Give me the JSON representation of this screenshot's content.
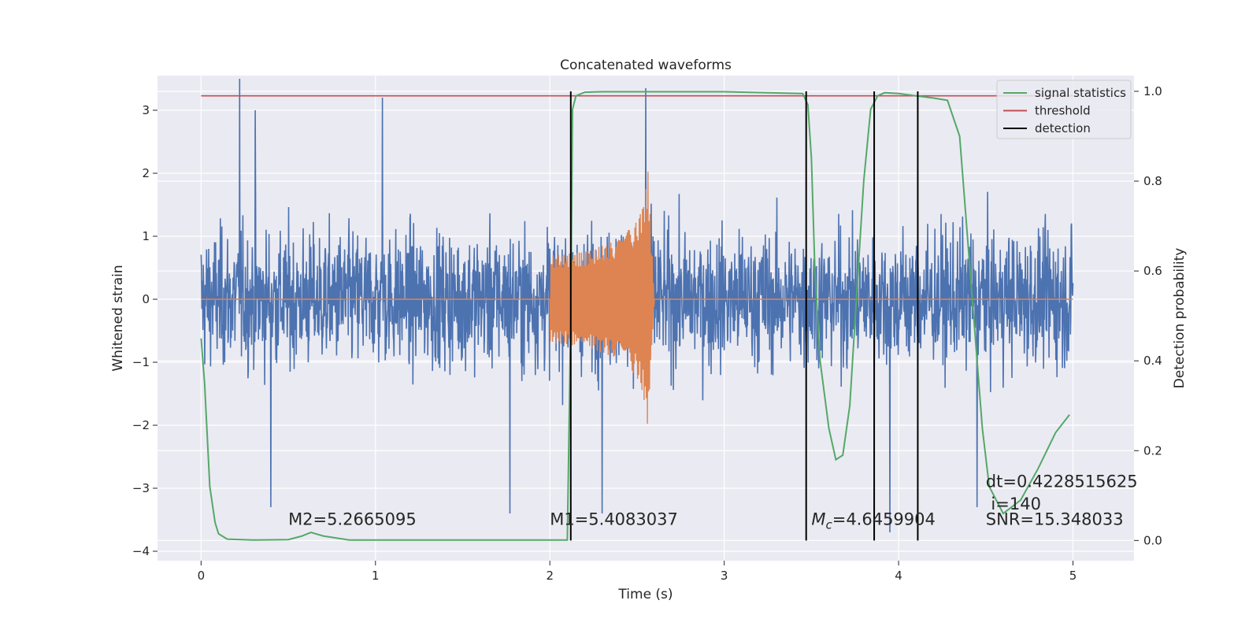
{
  "chart_data": {
    "type": "line",
    "title": "Concatenated waveforms",
    "xlabel": "Time (s)",
    "ylabel": "Whitened strain",
    "ylabel_right": "Detection probability",
    "xlim": [
      -0.25,
      5.35
    ],
    "ylim": [
      -4.15,
      3.55
    ],
    "ylim_right": [
      -0.045,
      1.035
    ],
    "x_ticks": [
      0,
      1,
      2,
      3,
      4,
      5
    ],
    "y_ticks": [
      -4,
      -3,
      -2,
      -1,
      0,
      1,
      2,
      3
    ],
    "y_ticks_right": [
      0.0,
      0.2,
      0.4,
      0.6,
      0.8,
      1.0
    ],
    "grid": true,
    "legend_position": "top-right",
    "colors": {
      "strain": "#4c72b0",
      "template": "#dd8452",
      "signal_statistics": "#55a868",
      "threshold": "#c44e52",
      "detection": "#000000",
      "background": "#eaeaf2",
      "grid": "#ffffff"
    },
    "series": [
      {
        "key": "strain",
        "kind": "noise",
        "x_range": [
          0,
          5
        ],
        "peak_points": [
          [
            0.22,
            3.5
          ],
          [
            0.31,
            3.0
          ],
          [
            1.04,
            3.2
          ],
          [
            2.55,
            3.35
          ],
          [
            0.4,
            -3.3
          ],
          [
            1.77,
            -3.4
          ],
          [
            4.45,
            -3.3
          ],
          [
            3.95,
            -3.7
          ],
          [
            2.3,
            -3.4
          ]
        ]
      },
      {
        "key": "template",
        "kind": "chirp",
        "x": [
          0.0,
          2.0,
          2.0,
          2.2,
          2.4,
          2.5,
          2.55,
          2.56,
          2.6,
          5.0
        ],
        "envelope": [
          0.0,
          0.0,
          0.7,
          0.75,
          0.95,
          1.25,
          1.75,
          2.2,
          0.0,
          0.0
        ]
      },
      {
        "name": "signal statistics",
        "key": "signal_statistics",
        "x": [
          0.0,
          0.02,
          0.05,
          0.08,
          0.1,
          0.15,
          0.3,
          0.5,
          0.58,
          0.63,
          0.7,
          0.85,
          1.0,
          2.0,
          2.1,
          2.12,
          2.13,
          2.15,
          2.2,
          2.3,
          3.0,
          3.45,
          3.48,
          3.5,
          3.52,
          3.55,
          3.6,
          3.64,
          3.68,
          3.72,
          3.76,
          3.8,
          3.84,
          3.88,
          3.92,
          4.0,
          4.1,
          4.2,
          4.28,
          4.35,
          4.42,
          4.48,
          4.52,
          4.6,
          4.7,
          4.8,
          4.9,
          4.98
        ],
        "values": [
          0.45,
          0.35,
          0.12,
          0.04,
          0.015,
          0.003,
          0.001,
          0.002,
          0.01,
          0.018,
          0.01,
          0.001,
          0.001,
          0.001,
          0.001,
          0.5,
          0.96,
          0.99,
          0.998,
          0.999,
          0.999,
          0.995,
          0.97,
          0.85,
          0.6,
          0.4,
          0.25,
          0.18,
          0.19,
          0.3,
          0.55,
          0.8,
          0.96,
          0.99,
          0.997,
          0.995,
          0.99,
          0.985,
          0.98,
          0.9,
          0.55,
          0.25,
          0.12,
          0.06,
          0.09,
          0.16,
          0.24,
          0.28
        ]
      },
      {
        "name": "threshold",
        "key": "threshold",
        "x": [
          0,
          5
        ],
        "values": [
          0.99,
          0.99
        ]
      },
      {
        "name": "detection",
        "key": "detection",
        "x": [
          2.12,
          3.47,
          3.86,
          4.11
        ],
        "values": [
          1.0,
          1.0,
          1.0,
          1.0
        ]
      }
    ],
    "annotations": [
      {
        "text": "M2=5.2665095",
        "x": 0.5,
        "y": -3.58
      },
      {
        "text": "M1=5.4083037",
        "x": 2.0,
        "y": -3.58
      },
      {
        "mc_symbol": "M",
        "mc_sub": "c",
        "text": "=4.6459904",
        "x": 3.5,
        "y": -3.58
      },
      {
        "text": "SNR=15.348033",
        "x": 4.5,
        "y": -3.58
      },
      {
        "text": "dt=0.4228515625",
        "x": 4.5,
        "y": -2.98
      },
      {
        "text": "i=140",
        "x": 4.53,
        "y": -3.34
      }
    ]
  }
}
